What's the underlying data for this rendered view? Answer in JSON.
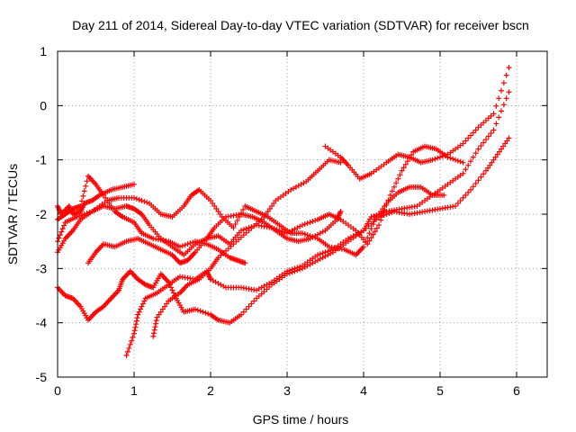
{
  "chart_data": {
    "type": "scatter",
    "title": "Day 211 of 2014, Sidereal Day-to-day VTEC variation (SDTVAR) for receiver bscn",
    "xlabel": "GPS time / hours",
    "ylabel": "SDTVAR / TECUs",
    "xlim": [
      0,
      6.4
    ],
    "ylim": [
      -5,
      1
    ],
    "x_ticks": [
      0,
      1,
      2,
      3,
      4,
      5,
      6
    ],
    "x_tick_labels": [
      "0",
      "1",
      "2",
      "3",
      "4",
      "5",
      "6"
    ],
    "y_ticks": [
      -5,
      -4,
      -3,
      -2,
      -1,
      0,
      1
    ],
    "y_tick_labels": [
      "-5",
      "-4",
      "-3",
      "-2",
      "-1",
      "0",
      "1"
    ],
    "grid": true,
    "marker": "+",
    "color": "#ff0000",
    "series": [
      {
        "points": [
          [
            0,
            -3.35
          ],
          [
            0.1,
            -3.5
          ],
          [
            0.2,
            -3.55
          ],
          [
            0.3,
            -3.7
          ],
          [
            0.4,
            -3.95
          ],
          [
            0.5,
            -3.8
          ],
          [
            0.6,
            -3.7
          ],
          [
            0.7,
            -3.55
          ],
          [
            0.8,
            -3.4
          ],
          [
            0.85,
            -3.2
          ],
          [
            0.95,
            -3.05
          ],
          [
            1.05,
            -3.2
          ],
          [
            1.15,
            -3.3
          ],
          [
            1.25,
            -3.35
          ],
          [
            1.35,
            -3.1
          ],
          [
            1.45,
            -3.25
          ],
          [
            1.55,
            -3.55
          ],
          [
            1.65,
            -3.8
          ],
          [
            1.8,
            -3.75
          ],
          [
            2.0,
            -3.85
          ],
          [
            2.1,
            -3.95
          ],
          [
            2.25,
            -4.0
          ],
          [
            2.4,
            -3.85
          ],
          [
            2.6,
            -3.55
          ],
          [
            2.8,
            -3.3
          ],
          [
            3.0,
            -3.1
          ],
          [
            3.2,
            -3.0
          ],
          [
            3.4,
            -2.85
          ],
          [
            3.6,
            -2.7
          ],
          [
            3.8,
            -2.5
          ],
          [
            4.0,
            -2.3
          ],
          [
            4.2,
            -2.05
          ],
          [
            4.4,
            -1.95
          ],
          [
            4.6,
            -2.0
          ],
          [
            4.8,
            -1.95
          ],
          [
            5.0,
            -1.9
          ],
          [
            5.2,
            -1.85
          ],
          [
            5.4,
            -1.55
          ],
          [
            5.6,
            -1.2
          ],
          [
            5.75,
            -0.9
          ],
          [
            5.9,
            -0.6
          ]
        ]
      },
      {
        "points": [
          [
            0.9,
            -4.6
          ],
          [
            1.0,
            -4.2
          ],
          [
            1.05,
            -3.85
          ],
          [
            1.15,
            -3.55
          ],
          [
            1.3,
            -3.45
          ],
          [
            1.45,
            -3.3
          ],
          [
            1.6,
            -3.15
          ],
          [
            1.8,
            -3.2
          ],
          [
            1.95,
            -3.05
          ],
          [
            2.0,
            -3.2
          ],
          [
            2.2,
            -3.35
          ],
          [
            2.4,
            -3.35
          ],
          [
            2.6,
            -3.4
          ],
          [
            2.8,
            -3.25
          ],
          [
            3.0,
            -3.05
          ],
          [
            3.2,
            -2.95
          ],
          [
            3.4,
            -2.75
          ],
          [
            3.6,
            -2.65
          ],
          [
            3.8,
            -2.45
          ],
          [
            4.0,
            -2.3
          ],
          [
            4.1,
            -2.05
          ],
          [
            4.3,
            -1.95
          ],
          [
            4.5,
            -1.9
          ],
          [
            4.7,
            -1.85
          ],
          [
            4.9,
            -1.65
          ],
          [
            5.1,
            -1.45
          ],
          [
            5.3,
            -1.25
          ],
          [
            5.5,
            -0.8
          ],
          [
            5.7,
            -0.45
          ],
          [
            5.9,
            0.25
          ]
        ]
      },
      {
        "points": [
          [
            1.25,
            -4.25
          ],
          [
            1.3,
            -3.9
          ],
          [
            1.45,
            -3.6
          ],
          [
            1.6,
            -3.45
          ],
          [
            1.7,
            -3.3
          ],
          [
            1.85,
            -3.2
          ],
          [
            2.0,
            -3.0
          ],
          [
            2.1,
            -2.8
          ],
          [
            2.3,
            -2.55
          ],
          [
            2.5,
            -2.3
          ],
          [
            2.7,
            -2.05
          ],
          [
            2.85,
            -1.75
          ],
          [
            3.05,
            -1.55
          ],
          [
            3.25,
            -1.4
          ],
          [
            3.4,
            -1.2
          ],
          [
            3.55,
            -1.0
          ],
          [
            3.7,
            -1.05
          ]
        ]
      },
      {
        "points": [
          [
            3.5,
            -0.75
          ],
          [
            3.7,
            -0.95
          ],
          [
            3.8,
            -1.1
          ],
          [
            3.95,
            -1.35
          ],
          [
            4.1,
            -1.25
          ],
          [
            4.3,
            -1.05
          ],
          [
            4.45,
            -0.9
          ],
          [
            4.6,
            -0.95
          ],
          [
            4.75,
            -1.05
          ],
          [
            4.9,
            -1.0
          ],
          [
            5.1,
            -0.9
          ],
          [
            5.3,
            -0.7
          ],
          [
            5.5,
            -0.4
          ],
          [
            5.7,
            -0.15
          ],
          [
            5.9,
            0.7
          ]
        ]
      },
      {
        "points": [
          [
            0,
            -2.7
          ],
          [
            0.1,
            -2.45
          ],
          [
            0.2,
            -2.3
          ],
          [
            0.3,
            -2.1
          ],
          [
            0.45,
            -1.95
          ],
          [
            0.6,
            -1.85
          ],
          [
            0.75,
            -1.9
          ],
          [
            0.9,
            -1.85
          ],
          [
            1.0,
            -1.9
          ],
          [
            1.1,
            -2.0
          ],
          [
            1.2,
            -2.2
          ],
          [
            1.35,
            -2.45
          ],
          [
            1.5,
            -2.6
          ],
          [
            1.65,
            -2.75
          ],
          [
            1.8,
            -2.55
          ],
          [
            1.95,
            -2.45
          ],
          [
            2.1,
            -2.4
          ],
          [
            2.25,
            -2.55
          ],
          [
            2.4,
            -2.3
          ],
          [
            2.6,
            -2.2
          ],
          [
            2.8,
            -2.25
          ],
          [
            3.0,
            -2.35
          ],
          [
            3.2,
            -2.2
          ],
          [
            3.4,
            -2.1
          ],
          [
            3.55,
            -2.0
          ],
          [
            3.7,
            -2.1
          ],
          [
            3.9,
            -2.3
          ],
          [
            4.05,
            -2.55
          ],
          [
            4.2,
            -2.2
          ],
          [
            4.35,
            -1.65
          ],
          [
            4.5,
            -1.2
          ],
          [
            4.65,
            -0.85
          ],
          [
            4.8,
            -0.75
          ],
          [
            4.95,
            -0.8
          ],
          [
            5.1,
            -0.95
          ],
          [
            5.3,
            -1.05
          ]
        ]
      },
      {
        "points": [
          [
            0,
            -2.5
          ],
          [
            0.1,
            -2.15
          ],
          [
            0.25,
            -2.05
          ],
          [
            0.45,
            -1.95
          ],
          [
            0.65,
            -1.75
          ],
          [
            0.8,
            -1.7
          ],
          [
            1.0,
            -1.7
          ],
          [
            1.2,
            -1.8
          ],
          [
            1.35,
            -2.0
          ],
          [
            1.5,
            -2.05
          ],
          [
            1.65,
            -1.85
          ],
          [
            1.75,
            -1.65
          ],
          [
            1.85,
            -1.55
          ],
          [
            2.0,
            -1.75
          ],
          [
            2.15,
            -2.05
          ],
          [
            2.3,
            -2.25
          ],
          [
            2.45,
            -1.85
          ],
          [
            2.6,
            -1.95
          ],
          [
            2.75,
            -2.05
          ],
          [
            2.9,
            -2.2
          ],
          [
            3.05,
            -2.35
          ],
          [
            3.2,
            -2.35
          ],
          [
            3.4,
            -2.45
          ],
          [
            3.55,
            -2.6
          ],
          [
            3.75,
            -2.65
          ],
          [
            3.9,
            -2.75
          ],
          [
            4.0,
            -2.6
          ],
          [
            4.15,
            -2.1
          ],
          [
            4.3,
            -1.8
          ],
          [
            4.45,
            -1.6
          ],
          [
            4.6,
            -1.5
          ],
          [
            4.75,
            -1.5
          ],
          [
            4.9,
            -1.65
          ],
          [
            5.05,
            -1.65
          ]
        ]
      },
      {
        "points": [
          [
            0.4,
            -2.9
          ],
          [
            0.5,
            -2.7
          ],
          [
            0.6,
            -2.55
          ],
          [
            0.75,
            -2.6
          ],
          [
            0.9,
            -2.5
          ],
          [
            1.05,
            -2.45
          ],
          [
            1.2,
            -2.55
          ],
          [
            1.35,
            -2.65
          ],
          [
            1.5,
            -2.75
          ],
          [
            1.6,
            -2.9
          ],
          [
            1.7,
            -2.85
          ],
          [
            1.8,
            -2.7
          ],
          [
            1.95,
            -2.45
          ],
          [
            2.05,
            -2.25
          ],
          [
            2.2,
            -2.05
          ],
          [
            2.4,
            -2.0
          ],
          [
            2.55,
            -2.05
          ],
          [
            2.7,
            -2.15
          ],
          [
            2.85,
            -2.3
          ],
          [
            3.0,
            -2.45
          ],
          [
            3.15,
            -2.5
          ],
          [
            3.3,
            -2.45
          ],
          [
            3.5,
            -2.3
          ],
          [
            3.65,
            -2.1
          ],
          [
            3.7,
            -1.95
          ]
        ]
      },
      {
        "points": [
          [
            0,
            -1.85
          ],
          [
            0.05,
            -2.0
          ],
          [
            0.15,
            -1.85
          ],
          [
            0.2,
            -2.0
          ],
          [
            0.3,
            -1.95
          ],
          [
            0.35,
            -1.8
          ],
          [
            0.45,
            -1.75
          ],
          [
            0.55,
            -1.65
          ],
          [
            0.7,
            -1.55
          ],
          [
            0.85,
            -1.5
          ],
          [
            1.0,
            -1.45
          ]
        ]
      },
      {
        "points": [
          [
            0,
            -2.1
          ],
          [
            0.1,
            -2.0
          ],
          [
            0.2,
            -1.9
          ],
          [
            0.3,
            -1.85
          ],
          [
            0.4,
            -1.3
          ],
          [
            0.5,
            -1.45
          ],
          [
            0.6,
            -1.65
          ],
          [
            0.75,
            -1.95
          ],
          [
            0.85,
            -2.05
          ],
          [
            1.0,
            -2.15
          ],
          [
            1.1,
            -2.35
          ],
          [
            1.25,
            -2.45
          ],
          [
            1.45,
            -2.5
          ],
          [
            1.6,
            -2.6
          ],
          [
            1.8,
            -2.5
          ],
          [
            1.95,
            -2.55
          ],
          [
            2.1,
            -2.65
          ],
          [
            2.25,
            -2.8
          ],
          [
            2.35,
            -2.85
          ],
          [
            2.45,
            -2.9
          ]
        ]
      }
    ]
  }
}
